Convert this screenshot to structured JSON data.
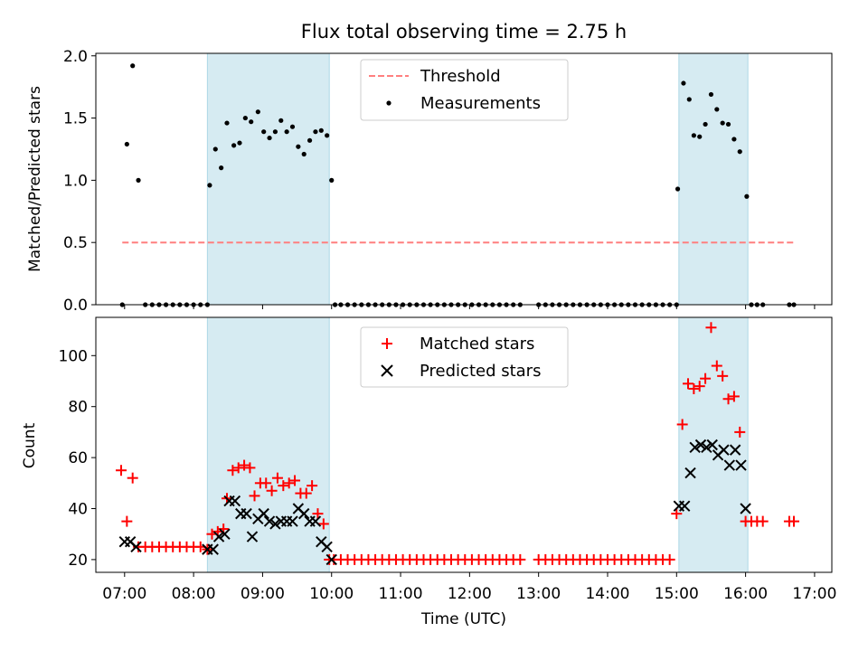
{
  "chart_data": [
    {
      "type": "scatter",
      "title": "Flux total observing time = 2.75 h",
      "xlabel": "",
      "ylabel": "Matched/Predicted stars",
      "xlim": [
        "06:35",
        "17:15"
      ],
      "ylim": [
        0,
        2.02
      ],
      "yticks": [
        "0.0",
        "0.5",
        "1.0",
        "1.5",
        "2.0"
      ],
      "legend_position": "top-center",
      "shaded_intervals": [
        [
          "08:12",
          "09:58"
        ],
        [
          "15:02",
          "16:02"
        ]
      ],
      "series": [
        {
          "name": "Threshold",
          "style": "dashed-line",
          "color": "#ff7f7f",
          "x": [
            "06:58",
            "16:42"
          ],
          "y": [
            0.5,
            0.5
          ]
        },
        {
          "name": "Measurements",
          "style": "dot",
          "color": "#000000",
          "points": [
            [
              "06:58",
              0.0
            ],
            [
              "07:02",
              1.29
            ],
            [
              "07:07",
              1.92
            ],
            [
              "07:12",
              1.0
            ],
            [
              "07:18",
              0.0
            ],
            [
              "07:24",
              0.0
            ],
            [
              "07:30",
              0.0
            ],
            [
              "07:36",
              0.0
            ],
            [
              "07:42",
              0.0
            ],
            [
              "07:48",
              0.0
            ],
            [
              "07:54",
              0.0
            ],
            [
              "08:00",
              0.0
            ],
            [
              "08:06",
              0.0
            ],
            [
              "08:12",
              0.0
            ],
            [
              "08:14",
              0.96
            ],
            [
              "08:19",
              1.25
            ],
            [
              "08:24",
              1.1
            ],
            [
              "08:29",
              1.46
            ],
            [
              "08:35",
              1.28
            ],
            [
              "08:40",
              1.3
            ],
            [
              "08:45",
              1.5
            ],
            [
              "08:50",
              1.47
            ],
            [
              "08:56",
              1.55
            ],
            [
              "09:01",
              1.39
            ],
            [
              "09:06",
              1.34
            ],
            [
              "09:11",
              1.39
            ],
            [
              "09:16",
              1.48
            ],
            [
              "09:21",
              1.39
            ],
            [
              "09:26",
              1.43
            ],
            [
              "09:31",
              1.27
            ],
            [
              "09:36",
              1.21
            ],
            [
              "09:41",
              1.32
            ],
            [
              "09:46",
              1.39
            ],
            [
              "09:51",
              1.4
            ],
            [
              "09:56",
              1.36
            ],
            [
              "10:00",
              1.0
            ],
            [
              "10:03",
              0.0
            ],
            [
              "10:08",
              0.0
            ],
            [
              "10:14",
              0.0
            ],
            [
              "10:20",
              0.0
            ],
            [
              "10:26",
              0.0
            ],
            [
              "10:32",
              0.0
            ],
            [
              "10:38",
              0.0
            ],
            [
              "10:44",
              0.0
            ],
            [
              "10:50",
              0.0
            ],
            [
              "10:56",
              0.0
            ],
            [
              "11:02",
              0.0
            ],
            [
              "11:08",
              0.0
            ],
            [
              "11:14",
              0.0
            ],
            [
              "11:20",
              0.0
            ],
            [
              "11:26",
              0.0
            ],
            [
              "11:32",
              0.0
            ],
            [
              "11:38",
              0.0
            ],
            [
              "11:44",
              0.0
            ],
            [
              "11:50",
              0.0
            ],
            [
              "11:56",
              0.0
            ],
            [
              "12:02",
              0.0
            ],
            [
              "12:08",
              0.0
            ],
            [
              "12:14",
              0.0
            ],
            [
              "12:20",
              0.0
            ],
            [
              "12:26",
              0.0
            ],
            [
              "12:32",
              0.0
            ],
            [
              "12:38",
              0.0
            ],
            [
              "12:44",
              0.0
            ],
            [
              "13:00",
              0.0
            ],
            [
              "13:06",
              0.0
            ],
            [
              "13:12",
              0.0
            ],
            [
              "13:18",
              0.0
            ],
            [
              "13:24",
              0.0
            ],
            [
              "13:30",
              0.0
            ],
            [
              "13:36",
              0.0
            ],
            [
              "13:42",
              0.0
            ],
            [
              "13:48",
              0.0
            ],
            [
              "13:54",
              0.0
            ],
            [
              "14:00",
              0.0
            ],
            [
              "14:06",
              0.0
            ],
            [
              "14:12",
              0.0
            ],
            [
              "14:18",
              0.0
            ],
            [
              "14:24",
              0.0
            ],
            [
              "14:30",
              0.0
            ],
            [
              "14:36",
              0.0
            ],
            [
              "14:42",
              0.0
            ],
            [
              "14:48",
              0.0
            ],
            [
              "14:54",
              0.0
            ],
            [
              "15:00",
              0.0
            ],
            [
              "15:01",
              0.93
            ],
            [
              "15:06",
              1.78
            ],
            [
              "15:11",
              1.65
            ],
            [
              "15:15",
              1.36
            ],
            [
              "15:20",
              1.35
            ],
            [
              "15:25",
              1.45
            ],
            [
              "15:30",
              1.69
            ],
            [
              "15:35",
              1.57
            ],
            [
              "15:40",
              1.46
            ],
            [
              "15:45",
              1.45
            ],
            [
              "15:50",
              1.33
            ],
            [
              "15:55",
              1.23
            ],
            [
              "16:01",
              0.87
            ],
            [
              "16:05",
              0.0
            ],
            [
              "16:10",
              0.0
            ],
            [
              "16:15",
              0.0
            ],
            [
              "16:38",
              0.0
            ],
            [
              "16:42",
              0.0
            ]
          ]
        }
      ]
    },
    {
      "type": "scatter",
      "title": "",
      "xlabel": "Time (UTC)",
      "ylabel": "Count",
      "xlim": [
        "06:35",
        "17:15"
      ],
      "ylim": [
        15,
        115
      ],
      "yticks": [
        "20",
        "40",
        "60",
        "80",
        "100"
      ],
      "xticks": [
        "07:00",
        "08:00",
        "09:00",
        "10:00",
        "11:00",
        "12:00",
        "13:00",
        "14:00",
        "15:00",
        "16:00",
        "17:00"
      ],
      "legend_position": "top-center",
      "shaded_intervals": [
        [
          "08:12",
          "09:58"
        ],
        [
          "15:02",
          "16:02"
        ]
      ],
      "series": [
        {
          "name": "Matched stars",
          "style": "plus",
          "color": "#ff0000",
          "points": [
            [
              "06:57",
              55
            ],
            [
              "07:02",
              35
            ],
            [
              "07:07",
              52
            ],
            [
              "07:12",
              25
            ],
            [
              "07:18",
              25
            ],
            [
              "07:24",
              25
            ],
            [
              "07:30",
              25
            ],
            [
              "07:36",
              25
            ],
            [
              "07:42",
              25
            ],
            [
              "07:48",
              25
            ],
            [
              "07:54",
              25
            ],
            [
              "08:00",
              25
            ],
            [
              "08:06",
              25
            ],
            [
              "08:12",
              24
            ],
            [
              "08:16",
              30
            ],
            [
              "08:21",
              31
            ],
            [
              "08:26",
              32
            ],
            [
              "08:29",
              44
            ],
            [
              "08:34",
              55
            ],
            [
              "08:39",
              56
            ],
            [
              "08:44",
              57
            ],
            [
              "08:49",
              56
            ],
            [
              "08:53",
              45
            ],
            [
              "08:58",
              50
            ],
            [
              "09:03",
              50
            ],
            [
              "09:08",
              47
            ],
            [
              "09:13",
              52
            ],
            [
              "09:18",
              49
            ],
            [
              "09:23",
              50
            ],
            [
              "09:28",
              51
            ],
            [
              "09:33",
              46
            ],
            [
              "09:38",
              46
            ],
            [
              "09:43",
              49
            ],
            [
              "09:48",
              38
            ],
            [
              "09:53",
              34
            ],
            [
              "09:58",
              20
            ],
            [
              "10:02",
              20
            ],
            [
              "10:08",
              20
            ],
            [
              "10:14",
              20
            ],
            [
              "10:20",
              20
            ],
            [
              "10:26",
              20
            ],
            [
              "10:32",
              20
            ],
            [
              "10:38",
              20
            ],
            [
              "10:44",
              20
            ],
            [
              "10:50",
              20
            ],
            [
              "10:56",
              20
            ],
            [
              "11:02",
              20
            ],
            [
              "11:08",
              20
            ],
            [
              "11:14",
              20
            ],
            [
              "11:20",
              20
            ],
            [
              "11:26",
              20
            ],
            [
              "11:32",
              20
            ],
            [
              "11:38",
              20
            ],
            [
              "11:44",
              20
            ],
            [
              "11:50",
              20
            ],
            [
              "11:56",
              20
            ],
            [
              "12:02",
              20
            ],
            [
              "12:08",
              20
            ],
            [
              "12:14",
              20
            ],
            [
              "12:20",
              20
            ],
            [
              "12:26",
              20
            ],
            [
              "12:32",
              20
            ],
            [
              "12:38",
              20
            ],
            [
              "12:44",
              20
            ],
            [
              "13:00",
              20
            ],
            [
              "13:06",
              20
            ],
            [
              "13:12",
              20
            ],
            [
              "13:18",
              20
            ],
            [
              "13:24",
              20
            ],
            [
              "13:30",
              20
            ],
            [
              "13:36",
              20
            ],
            [
              "13:42",
              20
            ],
            [
              "13:48",
              20
            ],
            [
              "13:54",
              20
            ],
            [
              "14:00",
              20
            ],
            [
              "14:06",
              20
            ],
            [
              "14:12",
              20
            ],
            [
              "14:18",
              20
            ],
            [
              "14:24",
              20
            ],
            [
              "14:30",
              20
            ],
            [
              "14:36",
              20
            ],
            [
              "14:42",
              20
            ],
            [
              "14:48",
              20
            ],
            [
              "14:54",
              20
            ],
            [
              "15:00",
              38
            ],
            [
              "15:05",
              73
            ],
            [
              "15:10",
              89
            ],
            [
              "15:15",
              87
            ],
            [
              "15:20",
              88
            ],
            [
              "15:25",
              91
            ],
            [
              "15:30",
              111
            ],
            [
              "15:35",
              96
            ],
            [
              "15:40",
              92
            ],
            [
              "15:45",
              83
            ],
            [
              "15:50",
              84
            ],
            [
              "15:55",
              70
            ],
            [
              "16:00",
              35
            ],
            [
              "16:05",
              35
            ],
            [
              "16:10",
              35
            ],
            [
              "16:15",
              35
            ],
            [
              "16:38",
              35
            ],
            [
              "16:42",
              35
            ]
          ]
        },
        {
          "name": "Predicted stars",
          "style": "cross",
          "color": "#000000",
          "points": [
            [
              "07:00",
              27
            ],
            [
              "07:05",
              27
            ],
            [
              "07:10",
              25
            ],
            [
              "08:12",
              24
            ],
            [
              "08:17",
              24
            ],
            [
              "08:22",
              29
            ],
            [
              "08:27",
              30
            ],
            [
              "08:31",
              43
            ],
            [
              "08:36",
              43
            ],
            [
              "08:41",
              38
            ],
            [
              "08:46",
              38
            ],
            [
              "08:51",
              29
            ],
            [
              "08:56",
              36
            ],
            [
              "09:01",
              38
            ],
            [
              "09:06",
              35
            ],
            [
              "09:11",
              34
            ],
            [
              "09:16",
              35
            ],
            [
              "09:21",
              35
            ],
            [
              "09:26",
              35
            ],
            [
              "09:31",
              40
            ],
            [
              "09:36",
              38
            ],
            [
              "09:41",
              35
            ],
            [
              "09:46",
              35
            ],
            [
              "09:51",
              27
            ],
            [
              "09:56",
              25
            ],
            [
              "10:00",
              20
            ],
            [
              "15:02",
              41
            ],
            [
              "15:07",
              41
            ],
            [
              "15:12",
              54
            ],
            [
              "15:16",
              64
            ],
            [
              "15:21",
              65
            ],
            [
              "15:26",
              64
            ],
            [
              "15:31",
              65
            ],
            [
              "15:36",
              61
            ],
            [
              "15:41",
              63
            ],
            [
              "15:46",
              57
            ],
            [
              "15:51",
              63
            ],
            [
              "15:56",
              57
            ],
            [
              "16:00",
              40
            ]
          ]
        }
      ]
    }
  ]
}
